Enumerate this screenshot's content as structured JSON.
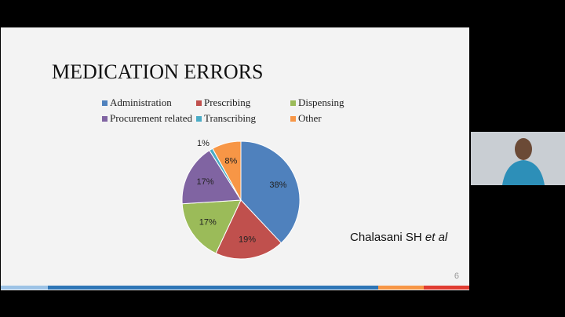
{
  "chart_data": {
    "type": "pie",
    "title": "MEDICATION ERRORS",
    "categories": [
      "Administration",
      "Prescribing",
      "Dispensing",
      "Procurement related",
      "Transcribing",
      "Other"
    ],
    "values": [
      38,
      19,
      17,
      17,
      1,
      8
    ],
    "value_labels": [
      "38%",
      "19%",
      "17%",
      "17%",
      "1%",
      "8%"
    ],
    "colors": [
      "#4f81bd",
      "#c0504d",
      "#9bbb59",
      "#8064a2",
      "#4bacc6",
      "#f79646"
    ]
  },
  "citation": {
    "author": "Chalasani SH",
    "suffix": "et al"
  },
  "slide_number": "6"
}
